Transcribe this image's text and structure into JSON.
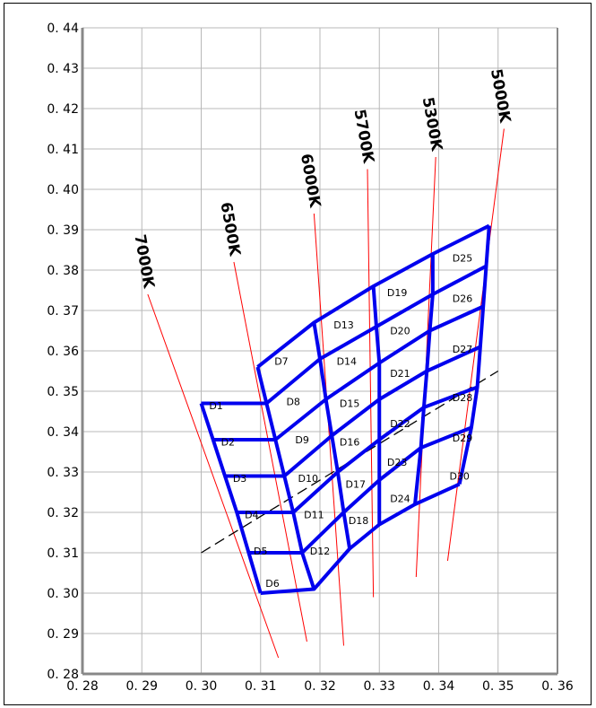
{
  "chart_data": {
    "type": "line",
    "xlim": [
      0.28,
      0.36
    ],
    "ylim": [
      0.28,
      0.44
    ],
    "x_tick_labels": [
      "0. 28",
      "0. 29",
      "0. 30",
      "0. 31",
      "0. 32",
      "0. 33",
      "0. 34",
      "0. 35",
      "0. 36"
    ],
    "x_tick_values": [
      0.28,
      0.29,
      0.3,
      0.31,
      0.32,
      0.33,
      0.34,
      0.35,
      0.36
    ],
    "y_tick_labels": [
      "0. 44",
      "0. 43",
      "0. 42",
      "0. 41",
      "0. 40",
      "0. 39",
      "0. 38",
      "0. 37",
      "0. 36",
      "0. 35",
      "0. 34",
      "0. 33",
      "0. 32",
      "0. 31",
      "0. 30",
      "0. 29",
      "0. 28"
    ],
    "y_tick_values": [
      0.44,
      0.43,
      0.42,
      0.41,
      0.4,
      0.39,
      0.38,
      0.37,
      0.36,
      0.35,
      0.34,
      0.33,
      0.32,
      0.31,
      0.3,
      0.29,
      0.28
    ],
    "grid": true,
    "colors": {
      "bins": "#0000ee",
      "cct_lines": "#ff0000",
      "grid": "#b8b8b8",
      "axes": "#888888"
    },
    "cct_labels": [
      "7000K",
      "6500K",
      "6000K",
      "5700K",
      "5300K",
      "5000K"
    ],
    "cct_lines": [
      {
        "name": "7000K",
        "from": [
          0.291,
          0.374
        ],
        "to": [
          0.313,
          0.284
        ]
      },
      {
        "name": "6500K",
        "from": [
          0.3055,
          0.382
        ],
        "to": [
          0.3178,
          0.288
        ]
      },
      {
        "name": "6000K",
        "from": [
          0.319,
          0.394
        ],
        "to": [
          0.324,
          0.287
        ]
      },
      {
        "name": "5700K",
        "from": [
          0.328,
          0.405
        ],
        "to": [
          0.329,
          0.299
        ]
      },
      {
        "name": "5300K",
        "from": [
          0.3395,
          0.408
        ],
        "to": [
          0.3362,
          0.304
        ]
      },
      {
        "name": "5000K",
        "from": [
          0.351,
          0.415
        ],
        "to": [
          0.3415,
          0.308
        ]
      }
    ],
    "bin_grid": [
      [
        [
          0.3,
          0.347
        ],
        [
          0.302,
          0.338
        ],
        [
          0.304,
          0.329
        ],
        [
          0.306,
          0.32
        ],
        [
          0.308,
          0.31
        ],
        [
          0.31,
          0.3
        ]
      ],
      [
        [
          0.3095,
          0.356
        ],
        [
          0.311,
          0.347
        ],
        [
          0.3125,
          0.338
        ],
        [
          0.314,
          0.329
        ],
        [
          0.3155,
          0.32
        ],
        [
          0.317,
          0.31
        ],
        [
          0.319,
          0.301
        ]
      ],
      [
        [
          0.319,
          0.367
        ],
        [
          0.32,
          0.358
        ],
        [
          0.321,
          0.348
        ],
        [
          0.322,
          0.339
        ],
        [
          0.323,
          0.33
        ],
        [
          0.324,
          0.32
        ],
        [
          0.325,
          0.311
        ]
      ],
      [
        [
          0.329,
          0.376
        ],
        [
          0.3295,
          0.366
        ],
        [
          0.33,
          0.357
        ],
        [
          0.33,
          0.348
        ],
        [
          0.33,
          0.338
        ],
        [
          0.33,
          0.328
        ],
        [
          0.33,
          0.317
        ]
      ],
      [
        [
          0.339,
          0.384
        ],
        [
          0.339,
          0.374
        ],
        [
          0.3385,
          0.365
        ],
        [
          0.338,
          0.355
        ],
        [
          0.3375,
          0.346
        ],
        [
          0.337,
          0.336
        ],
        [
          0.336,
          0.322
        ]
      ],
      [
        [
          0.3485,
          0.391
        ],
        [
          0.348,
          0.381
        ],
        [
          0.3475,
          0.371
        ],
        [
          0.347,
          0.361
        ],
        [
          0.3465,
          0.351
        ],
        [
          0.3455,
          0.341
        ],
        [
          0.3435,
          0.327
        ]
      ]
    ],
    "bins": [
      {
        "label": "D1",
        "x": 0.3025,
        "y": 0.3465
      },
      {
        "label": "D2",
        "x": 0.3045,
        "y": 0.3375
      },
      {
        "label": "D3",
        "x": 0.3065,
        "y": 0.3285
      },
      {
        "label": "D4",
        "x": 0.3085,
        "y": 0.3195
      },
      {
        "label": "D5",
        "x": 0.31,
        "y": 0.3105
      },
      {
        "label": "D6",
        "x": 0.312,
        "y": 0.3025
      },
      {
        "label": "D7",
        "x": 0.3135,
        "y": 0.3575
      },
      {
        "label": "D8",
        "x": 0.3155,
        "y": 0.3475
      },
      {
        "label": "D9",
        "x": 0.317,
        "y": 0.338
      },
      {
        "label": "D10",
        "x": 0.318,
        "y": 0.3285
      },
      {
        "label": "D11",
        "x": 0.319,
        "y": 0.3195
      },
      {
        "label": "D12",
        "x": 0.32,
        "y": 0.3105
      },
      {
        "label": "D13",
        "x": 0.324,
        "y": 0.3665
      },
      {
        "label": "D14",
        "x": 0.3245,
        "y": 0.3575
      },
      {
        "label": "D15",
        "x": 0.325,
        "y": 0.347
      },
      {
        "label": "D16",
        "x": 0.325,
        "y": 0.3375
      },
      {
        "label": "D17",
        "x": 0.326,
        "y": 0.327
      },
      {
        "label": "D18",
        "x": 0.3265,
        "y": 0.318
      },
      {
        "label": "D19",
        "x": 0.333,
        "y": 0.3745
      },
      {
        "label": "D20",
        "x": 0.3335,
        "y": 0.365
      },
      {
        "label": "D21",
        "x": 0.3335,
        "y": 0.3545
      },
      {
        "label": "D22",
        "x": 0.3335,
        "y": 0.342
      },
      {
        "label": "D23",
        "x": 0.333,
        "y": 0.3325
      },
      {
        "label": "D24",
        "x": 0.3335,
        "y": 0.3235
      },
      {
        "label": "D25",
        "x": 0.344,
        "y": 0.383
      },
      {
        "label": "D26",
        "x": 0.344,
        "y": 0.373
      },
      {
        "label": "D27",
        "x": 0.344,
        "y": 0.3605
      },
      {
        "label": "D28",
        "x": 0.344,
        "y": 0.3485
      },
      {
        "label": "D29",
        "x": 0.344,
        "y": 0.3385
      },
      {
        "label": "D30",
        "x": 0.3435,
        "y": 0.329
      }
    ],
    "planckian_locus": {
      "style": "dashed",
      "from": [
        0.3,
        0.31
      ],
      "to": [
        0.35,
        0.355
      ]
    }
  }
}
